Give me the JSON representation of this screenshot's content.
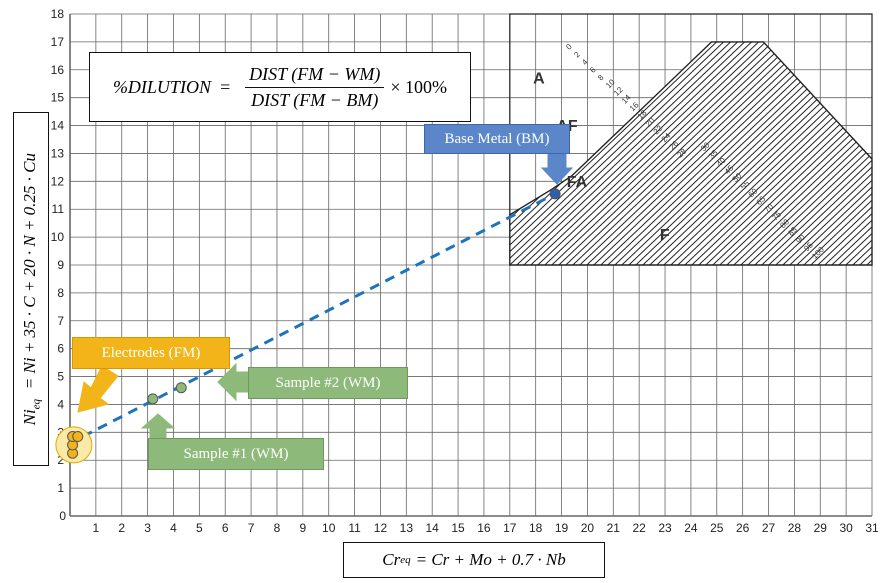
{
  "chart_data": {
    "type": "scatter",
    "title": "",
    "x_ticks": [
      1,
      2,
      3,
      4,
      5,
      6,
      7,
      8,
      9,
      10,
      11,
      12,
      13,
      14,
      15,
      16,
      17,
      18,
      19,
      20,
      21,
      22,
      23,
      24,
      25,
      26,
      27,
      28,
      29,
      30,
      31
    ],
    "y_ticks": [
      1,
      2,
      3,
      4,
      5,
      6,
      7,
      8,
      9,
      10,
      11,
      12,
      13,
      14,
      15,
      16,
      17,
      18
    ],
    "origin_label": "0",
    "xlim": [
      0,
      31
    ],
    "ylim": [
      0,
      18
    ],
    "grid": true,
    "regions": [
      {
        "label": "A",
        "x": 17.9,
        "y": 15.5
      },
      {
        "label": "AF",
        "x": 18.8,
        "y": 13.8
      },
      {
        "label": "FA",
        "x": 19.2,
        "y": 11.8
      },
      {
        "label": "F",
        "x": 22.8,
        "y": 9.9
      }
    ],
    "ferrite_numbers": [
      "0",
      "2",
      "4",
      "6",
      "8",
      "10",
      "12",
      "14",
      "16",
      "18",
      "20",
      "22",
      "24",
      "26",
      "28",
      "30",
      "35",
      "40",
      "45",
      "50",
      "55",
      "60",
      "65",
      "70",
      "75",
      "80",
      "85",
      "90",
      "95",
      "100"
    ],
    "points": [
      {
        "name": "Electrodes (FM)",
        "x": 0.1,
        "y": 2.25,
        "color": "#f2b418"
      },
      {
        "name": "Electrodes (FM)",
        "x": 0.1,
        "y": 2.55,
        "color": "#f2b418"
      },
      {
        "name": "Electrodes (FM)",
        "x": 0.1,
        "y": 2.85,
        "color": "#f2b418"
      },
      {
        "name": "Electrodes (FM)",
        "x": 0.3,
        "y": 2.85,
        "color": "#f2b418"
      },
      {
        "name": "Sample #1 (WM)",
        "x": 3.2,
        "y": 4.2,
        "color": "#8db97a"
      },
      {
        "name": "Sample #2 (WM)",
        "x": 4.3,
        "y": 4.6,
        "color": "#8db97a"
      },
      {
        "name": "Base Metal (BM)",
        "x": 18.75,
        "y": 11.55,
        "color": "#2f5fb3"
      }
    ],
    "dilution_line": {
      "from": [
        0.5,
        2.85
      ],
      "to": [
        18.75,
        11.55
      ],
      "color": "#1e73be"
    },
    "callouts": {
      "base_metal": "Base Metal (BM)",
      "electrodes": "Electrodes (FM)",
      "sample2": "Sample #2 (WM)",
      "sample1": "Sample #1 (WM)"
    },
    "colors": {
      "base_metal": "#5b86c9",
      "electrodes": "#f2b418",
      "sample": "#8db97a",
      "line": "#1e73be"
    }
  },
  "formula": {
    "lhs": "%DILUTION",
    "equals": "=",
    "numerator": "DIST (FM − WM)",
    "denominator": "DIST (FM − BM)",
    "tail": "× 100%"
  },
  "xlabel": {
    "lhs": "Cr",
    "sub": "eq",
    "rhs": "= Cr + Mo + 0.7 · Nb"
  },
  "ylabel": {
    "lhs": "Ni",
    "sub": "eq",
    "rhs": "= Ni + 35 · C + 20 · N + 0.25 · Cu"
  }
}
